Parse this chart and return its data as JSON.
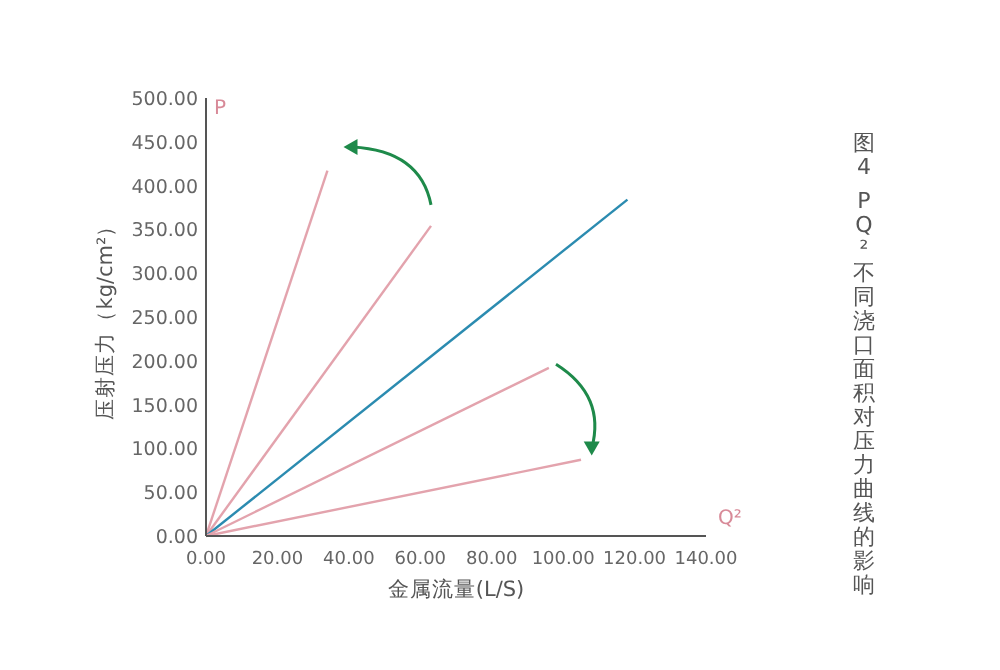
{
  "chart_data": {
    "type": "line",
    "title": "图4 PQ²不同浇口面积对压力曲线的影响",
    "xlabel": "金属流量(L/S)",
    "ylabel": "压射压力（kg/cm²）",
    "annotations": [
      "P",
      "Q²"
    ],
    "series": [
      {
        "color": "#e3a3ad",
        "x": [
          0,
          34
        ],
        "values": [
          0,
          417
        ]
      },
      {
        "color": "#e3a3ad",
        "x": [
          0,
          63
        ],
        "values": [
          0,
          354
        ]
      },
      {
        "color": "#2b8bb0",
        "x": [
          0,
          118
        ],
        "values": [
          0,
          384
        ]
      },
      {
        "color": "#e3a3ad",
        "x": [
          0,
          96
        ],
        "values": [
          0,
          192
        ]
      },
      {
        "color": "#e3a3ad",
        "x": [
          0,
          105
        ],
        "values": [
          0,
          87
        ]
      }
    ],
    "xlim": [
      0,
      140
    ],
    "ylim": [
      0,
      500
    ],
    "xticks": [
      {
        "value": 0,
        "label": "0.00"
      },
      {
        "value": 20,
        "label": "20.00"
      },
      {
        "value": 40,
        "label": "40.00"
      },
      {
        "value": 60,
        "label": "60.00"
      },
      {
        "value": 80,
        "label": "80.00"
      },
      {
        "value": 100,
        "label": "100.00"
      },
      {
        "value": 120,
        "label": "120.00"
      },
      {
        "value": 140,
        "label": "140.00"
      }
    ],
    "yticks": [
      {
        "value": 0,
        "label": "0.00"
      },
      {
        "value": 50,
        "label": "50.00"
      },
      {
        "value": 100,
        "label": "100.00"
      },
      {
        "value": 150,
        "label": "150.00"
      },
      {
        "value": 200,
        "label": "200.00"
      },
      {
        "value": 250,
        "label": "250.00"
      },
      {
        "value": 300,
        "label": "300.00"
      },
      {
        "value": 350,
        "label": "350.00"
      },
      {
        "value": 400,
        "label": "400.00"
      },
      {
        "value": 450,
        "label": "450.00"
      },
      {
        "value": 500,
        "label": "500.00"
      }
    ],
    "grid": false,
    "line_style": "solid"
  }
}
